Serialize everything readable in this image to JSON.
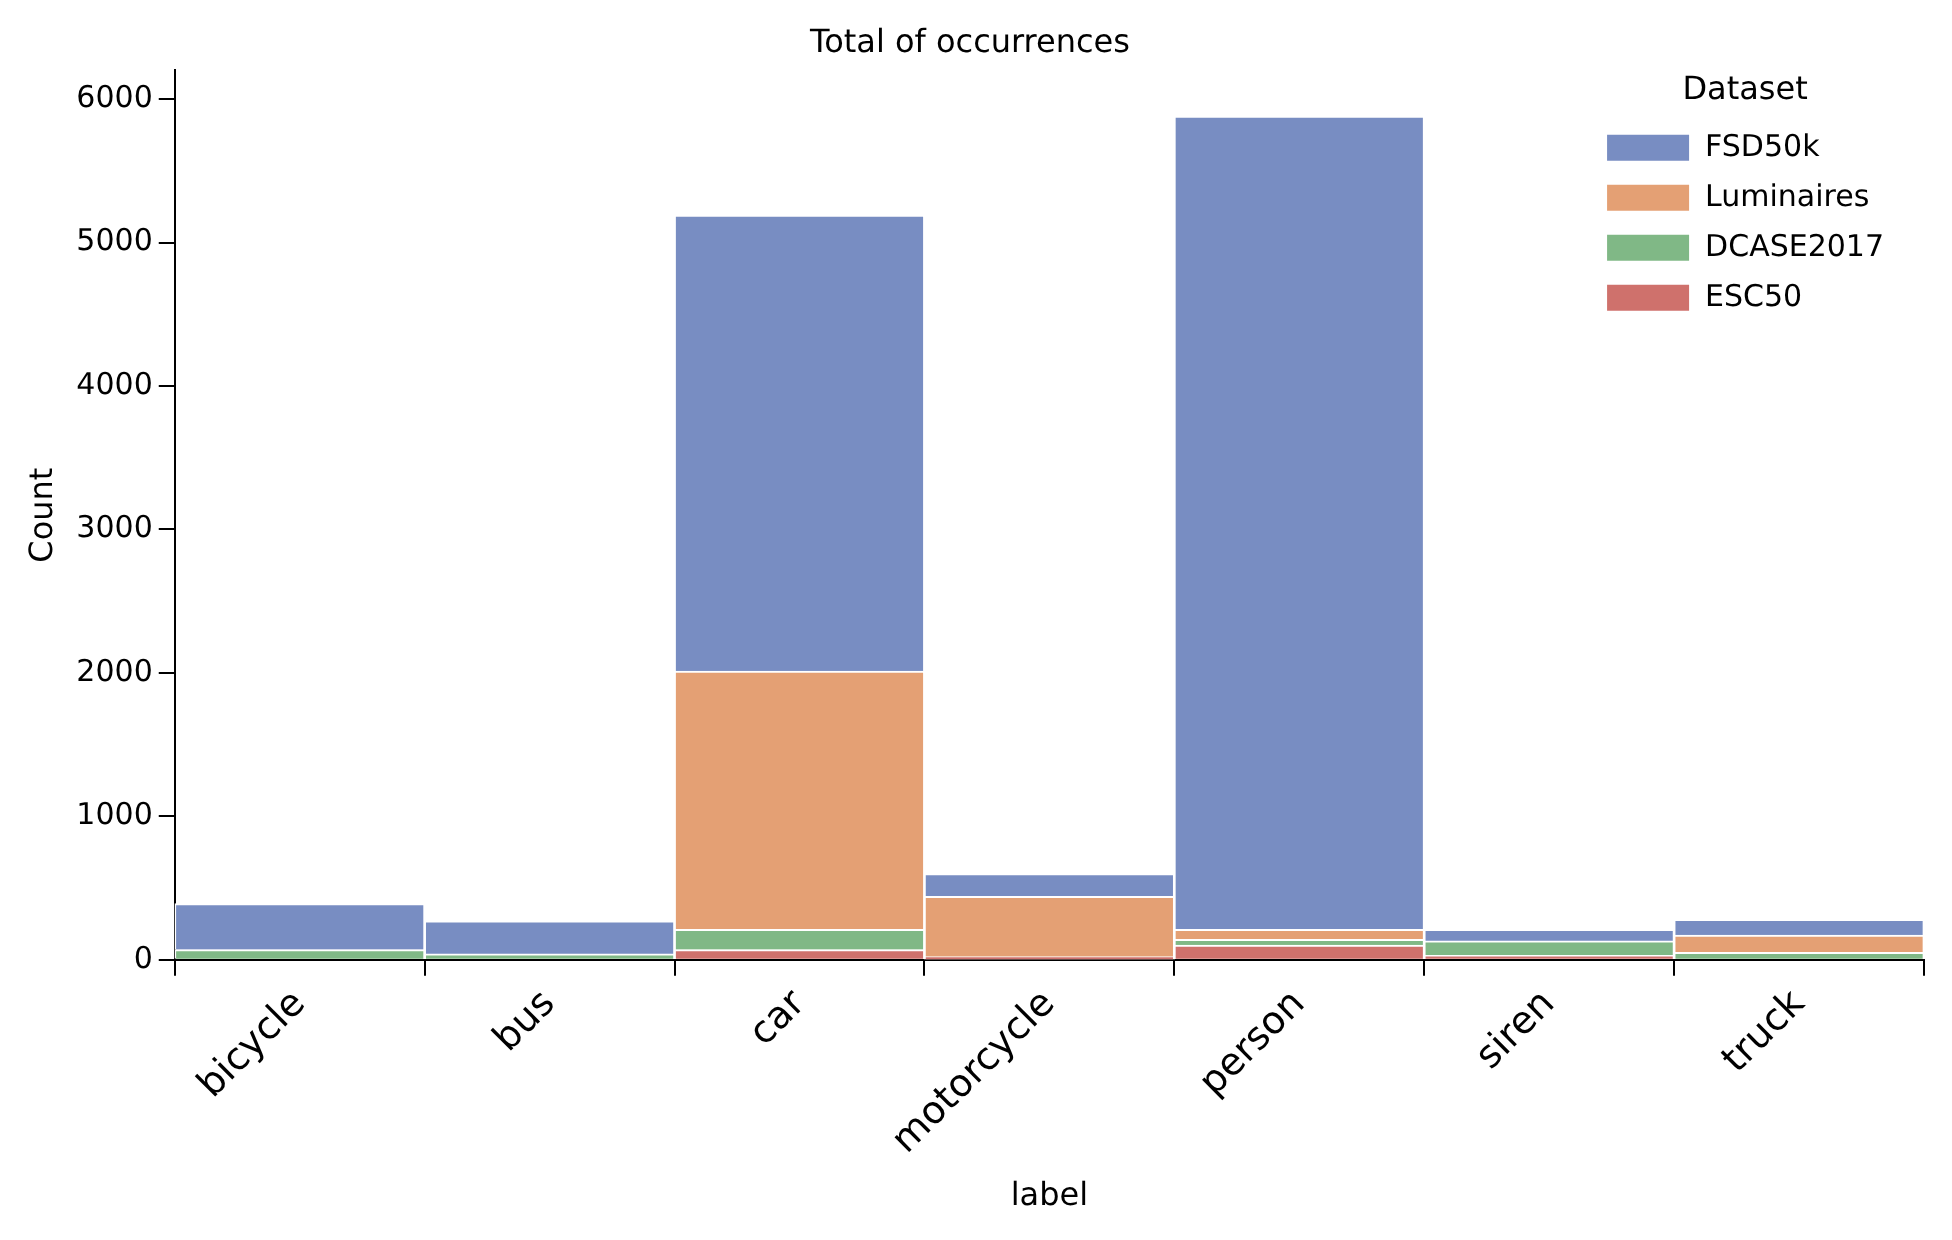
{
  "chart_data": {
    "type": "bar",
    "title": "Total of occurrences",
    "xlabel": "label",
    "ylabel": "Count",
    "legend_title": "Dataset",
    "legend": "top right",
    "stacked": true,
    "grid": false,
    "categories": [
      "bicycle",
      "bus",
      "car",
      "motorcycle",
      "person",
      "siren",
      "truck"
    ],
    "series": [
      {
        "name": "ESC50",
        "color": "#cf716c",
        "values": [
          0,
          0,
          70,
          20,
          100,
          30,
          0
        ]
      },
      {
        "name": "DCASE2017",
        "color": "#80b886",
        "values": [
          70,
          40,
          140,
          0,
          40,
          100,
          50
        ]
      },
      {
        "name": "Luminaires",
        "color": "#e4a074",
        "values": [
          0,
          0,
          1800,
          420,
          70,
          0,
          120
        ]
      },
      {
        "name": "FSD50k",
        "color": "#788dc2",
        "values": [
          320,
          230,
          3180,
          160,
          5670,
          80,
          110
        ]
      }
    ],
    "ylim": [
      0,
      6200
    ],
    "yticks": [
      0,
      1000,
      2000,
      3000,
      4000,
      5000,
      6000
    ]
  }
}
